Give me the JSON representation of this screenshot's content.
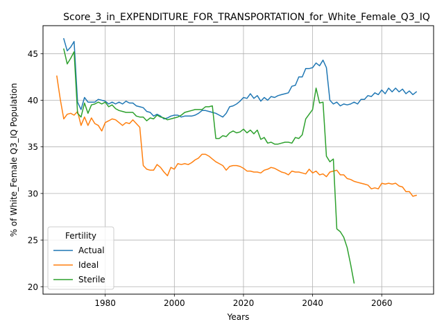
{
  "chart_data": {
    "type": "line",
    "title": "Score_3_in_EXPENDITURE_FOR_TRANSPORTATION_for_White_Female_Q3_IQ",
    "xlabel": "Years",
    "ylabel": "% of White_Female Q3_IQ Population",
    "xlim": [
      1962,
      2075
    ],
    "ylim": [
      19.2,
      48.0
    ],
    "xticks": [
      1980,
      2000,
      2020,
      2040,
      2060
    ],
    "yticks": [
      20,
      25,
      30,
      35,
      40,
      45
    ],
    "grid": true,
    "legend": {
      "title": "Fertility",
      "placement": "lower-left"
    },
    "series": [
      {
        "name": "Actual",
        "color": "#1f77b4",
        "x": [
          1968,
          1969,
          1970,
          1971,
          1972,
          1973,
          1974,
          1975,
          1976,
          1977,
          1978,
          1979,
          1980,
          1981,
          1982,
          1983,
          1984,
          1985,
          1986,
          1987,
          1988,
          1989,
          1990,
          1991,
          1992,
          1993,
          1994,
          1995,
          1996,
          1997,
          1998,
          1999,
          2000,
          2001,
          2002,
          2003,
          2004,
          2005,
          2006,
          2007,
          2008,
          2009,
          2010,
          2011,
          2012,
          2013,
          2014,
          2015,
          2016,
          2017,
          2018,
          2019,
          2020,
          2021,
          2022,
          2023,
          2024,
          2025,
          2026,
          2027,
          2028,
          2029,
          2030,
          2031,
          2032,
          2033,
          2034,
          2035,
          2036,
          2037,
          2038,
          2039,
          2040,
          2041,
          2042,
          2043,
          2044,
          2045,
          2046,
          2047,
          2048,
          2049,
          2050,
          2051,
          2052,
          2053,
          2054,
          2055,
          2056,
          2057,
          2058,
          2059,
          2060,
          2061,
          2062,
          2063,
          2064,
          2065,
          2066,
          2067,
          2068,
          2069,
          2070
        ],
        "y": [
          46.6,
          45.3,
          45.7,
          46.3,
          39.8,
          39.0,
          40.3,
          39.8,
          39.8,
          39.8,
          40.1,
          40.0,
          39.9,
          39.6,
          39.8,
          39.6,
          39.8,
          39.6,
          39.9,
          39.7,
          39.7,
          39.4,
          39.3,
          39.2,
          38.8,
          38.7,
          38.3,
          38.5,
          38.3,
          38.0,
          38.1,
          38.3,
          38.4,
          38.4,
          38.2,
          38.3,
          38.3,
          38.3,
          38.4,
          38.6,
          38.9,
          38.9,
          38.8,
          38.7,
          38.6,
          38.4,
          38.2,
          38.6,
          39.3,
          39.4,
          39.6,
          39.9,
          40.3,
          40.2,
          40.7,
          40.2,
          40.5,
          39.9,
          40.3,
          40.0,
          40.4,
          40.3,
          40.5,
          40.6,
          40.7,
          40.8,
          41.5,
          41.6,
          42.5,
          42.5,
          43.4,
          43.4,
          43.5,
          44.0,
          43.7,
          44.3,
          43.5,
          40.0,
          39.6,
          39.8,
          39.4,
          39.6,
          39.5,
          39.6,
          39.8,
          39.6,
          40.1,
          40.1,
          40.5,
          40.4,
          40.8,
          40.6,
          41.1,
          40.7,
          41.3,
          40.9,
          41.3,
          40.9,
          41.2,
          40.7,
          41.0,
          40.6,
          40.9
        ]
      },
      {
        "name": "Ideal",
        "color": "#ff7f0e",
        "x": [
          1966,
          1967,
          1968,
          1969,
          1970,
          1971,
          1972,
          1973,
          1974,
          1975,
          1976,
          1977,
          1978,
          1979,
          1980,
          1981,
          1982,
          1983,
          1984,
          1985,
          1986,
          1987,
          1988,
          1989,
          1990,
          1991,
          1992,
          1993,
          1994,
          1995,
          1996,
          1997,
          1998,
          1999,
          2000,
          2001,
          2002,
          2003,
          2004,
          2005,
          2006,
          2007,
          2008,
          2009,
          2010,
          2011,
          2012,
          2013,
          2014,
          2015,
          2016,
          2017,
          2018,
          2019,
          2020,
          2021,
          2022,
          2023,
          2024,
          2025,
          2026,
          2027,
          2028,
          2029,
          2030,
          2031,
          2032,
          2033,
          2034,
          2035,
          2036,
          2037,
          2038,
          2039,
          2040,
          2041,
          2042,
          2043,
          2044,
          2045,
          2046,
          2047,
          2048,
          2049,
          2050,
          2051,
          2052,
          2053,
          2054,
          2055,
          2056,
          2057,
          2058,
          2059,
          2060,
          2061,
          2062,
          2063,
          2064,
          2065,
          2066,
          2067,
          2068,
          2069,
          2070
        ],
        "y": [
          42.6,
          40.1,
          38.0,
          38.5,
          38.6,
          38.4,
          38.8,
          37.3,
          38.2,
          37.3,
          38.1,
          37.5,
          37.3,
          36.7,
          37.6,
          37.8,
          38.0,
          37.9,
          37.6,
          37.3,
          37.6,
          37.5,
          37.9,
          37.5,
          37.1,
          33.0,
          32.6,
          32.5,
          32.5,
          33.1,
          32.8,
          32.3,
          31.9,
          32.8,
          32.6,
          33.2,
          33.1,
          33.2,
          33.1,
          33.3,
          33.6,
          33.8,
          34.2,
          34.2,
          34.0,
          33.7,
          33.4,
          33.2,
          33.0,
          32.5,
          32.9,
          33.0,
          33.0,
          32.9,
          32.7,
          32.4,
          32.4,
          32.3,
          32.3,
          32.2,
          32.5,
          32.6,
          32.8,
          32.7,
          32.5,
          32.3,
          32.2,
          32.0,
          32.4,
          32.3,
          32.3,
          32.2,
          32.1,
          32.6,
          32.2,
          32.4,
          32.0,
          32.1,
          31.8,
          32.3,
          32.4,
          32.5,
          32.0,
          32.0,
          31.6,
          31.5,
          31.3,
          31.2,
          31.1,
          31.0,
          30.9,
          30.5,
          30.6,
          30.5,
          31.1,
          31.0,
          31.1,
          31.0,
          31.1,
          30.8,
          30.7,
          30.2,
          30.2,
          29.7,
          29.8
        ]
      },
      {
        "name": "Sterile",
        "color": "#2ca02c",
        "x": [
          1968,
          1969,
          1970,
          1971,
          1972,
          1973,
          1974,
          1975,
          1976,
          1977,
          1978,
          1979,
          1980,
          1981,
          1982,
          1983,
          1984,
          1985,
          1986,
          1987,
          1988,
          1989,
          1990,
          1991,
          1992,
          1993,
          1994,
          1995,
          1996,
          1997,
          1998,
          1999,
          2000,
          2001,
          2002,
          2003,
          2004,
          2005,
          2006,
          2007,
          2008,
          2009,
          2010,
          2011,
          2012,
          2013,
          2014,
          2015,
          2016,
          2017,
          2018,
          2019,
          2020,
          2021,
          2022,
          2023,
          2024,
          2025,
          2026,
          2027,
          2028,
          2029,
          2030,
          2031,
          2032,
          2033,
          2034,
          2035,
          2036,
          2037,
          2038,
          2039,
          2040,
          2041,
          2042,
          2043,
          2044,
          2045,
          2046,
          2047,
          2048,
          2049,
          2050,
          2051,
          2052
        ],
        "y": [
          45.5,
          43.9,
          44.5,
          45.2,
          38.6,
          38.2,
          39.7,
          38.6,
          39.5,
          39.6,
          39.8,
          39.6,
          39.8,
          39.3,
          39.5,
          39.1,
          38.9,
          38.8,
          38.7,
          38.7,
          38.7,
          38.3,
          38.2,
          38.2,
          37.8,
          38.1,
          38.0,
          38.4,
          38.2,
          38.1,
          37.9,
          38.0,
          38.1,
          38.2,
          38.4,
          38.7,
          38.8,
          38.9,
          39.0,
          39.0,
          39.0,
          39.3,
          39.3,
          39.4,
          35.9,
          35.9,
          36.2,
          36.1,
          36.5,
          36.7,
          36.5,
          36.6,
          36.9,
          36.5,
          36.8,
          36.4,
          36.8,
          35.8,
          36.0,
          35.4,
          35.5,
          35.3,
          35.3,
          35.4,
          35.5,
          35.5,
          35.4,
          36.0,
          35.9,
          36.3,
          38.0,
          38.5,
          39.0,
          41.3,
          39.7,
          39.8,
          34.0,
          33.4,
          33.7,
          26.2,
          25.9,
          25.3,
          24.2,
          22.4,
          20.4
        ]
      }
    ]
  }
}
